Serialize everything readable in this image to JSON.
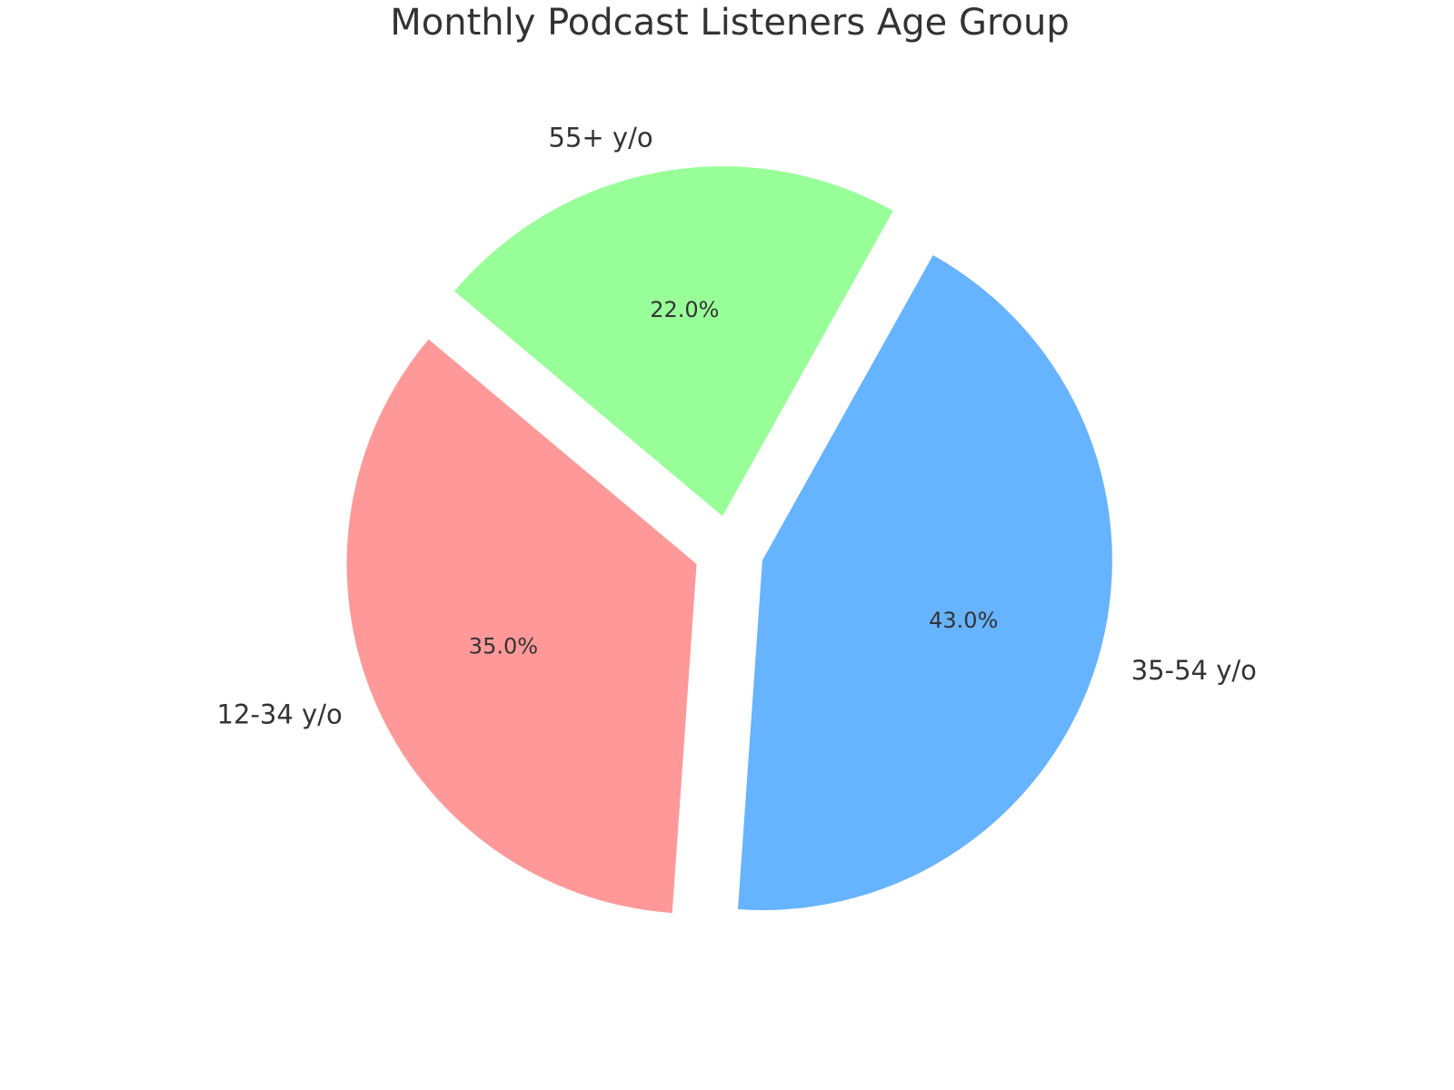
{
  "chart_data": {
    "type": "pie",
    "title": "Monthly Podcast Listeners Age Group",
    "categories": [
      "12-34 y/o",
      "35-54 y/o",
      "55+ y/o"
    ],
    "values": [
      35.0,
      43.0,
      22.0
    ],
    "value_labels": [
      "35.0%",
      "43.0%",
      "22.0%"
    ],
    "colors": [
      "#ff9999",
      "#66b3ff",
      "#99ff99"
    ],
    "explode": [
      0.1,
      0.1,
      0.1
    ],
    "start_angle": 140,
    "direction": "counterclockwise",
    "legend": "none"
  }
}
